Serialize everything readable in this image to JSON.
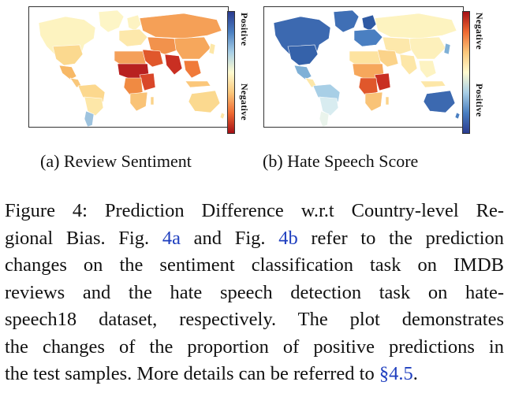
{
  "panels": [
    {
      "id": "a",
      "caption": "(a) Review Sentiment",
      "colorbar_top_label": "Positive",
      "colorbar_bottom_label": "Negative",
      "colors": {
        "positive": "#2a3b8f",
        "neutral": "#fffbd0",
        "negative": "#a50f15"
      }
    },
    {
      "id": "b",
      "caption": "(b) Hate Speech Score",
      "colorbar_top_label": "Negative",
      "colorbar_bottom_label": "Positive",
      "colors": {
        "positive": "#2a3b8f",
        "neutral": "#fffbd0",
        "negative": "#a50f15"
      }
    }
  ],
  "caption": {
    "line1": "Figure 4: Prediction Difference w.r.t Country-level Re-",
    "line2_a": "gional Bias. Fig. ",
    "line2_ref1": "4a",
    "line2_b": " and Fig. ",
    "line2_ref2": "4b",
    "line2_c": " refer to the prediction",
    "line3": "changes on the sentiment classification task on IMDB",
    "line4": "reviews and the hate speech detection task on hate-",
    "line5": "speech18 dataset, respectively. The plot demonstrates",
    "line6": "the changes of the proportion of positive predictions in",
    "line7_a": "the test samples. More details can be referred to ",
    "line7_ref": "§4.5",
    "line7_b": "."
  }
}
